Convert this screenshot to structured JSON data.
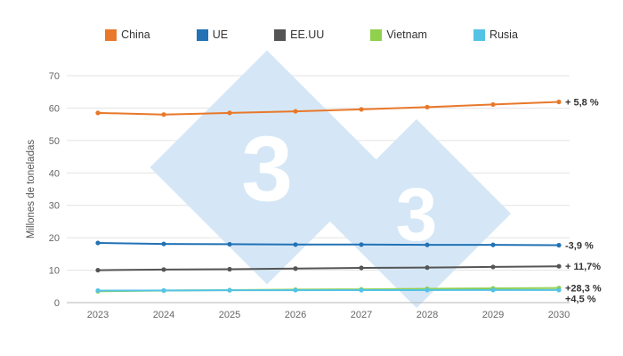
{
  "chart_data": {
    "type": "line",
    "title": "",
    "xlabel": "",
    "ylabel": "Millones de toneladas",
    "ylim": [
      0,
      70
    ],
    "yticks": [
      0,
      10,
      20,
      30,
      40,
      50,
      60,
      70
    ],
    "grid": true,
    "legend_position": "top",
    "x": [
      "2023",
      "2024",
      "2025",
      "2026",
      "2027",
      "2028",
      "2029",
      "2030"
    ],
    "series": [
      {
        "name": "China",
        "color": "#E8782A",
        "values": [
          58.5,
          58.0,
          58.5,
          59.0,
          59.6,
          60.3,
          61.1,
          61.9
        ],
        "end_label": "+ 5,8 %"
      },
      {
        "name": "UE",
        "color": "#2272B5",
        "values": [
          18.4,
          18.1,
          18.0,
          17.9,
          17.9,
          17.8,
          17.8,
          17.7
        ],
        "end_label": "-3,9 %"
      },
      {
        "name": "EE.UU",
        "color": "#555555",
        "values": [
          10.0,
          10.2,
          10.3,
          10.5,
          10.7,
          10.8,
          11.0,
          11.2
        ],
        "end_label": "+ 11,7%"
      },
      {
        "name": "Vietnam",
        "color": "#90D04D",
        "values": [
          3.5,
          3.7,
          3.85,
          4.0,
          4.1,
          4.25,
          4.4,
          4.5
        ],
        "end_label": "+28,3 %"
      },
      {
        "name": "Rusia",
        "color": "#55C3E6",
        "values": [
          3.7,
          3.75,
          3.8,
          3.82,
          3.85,
          3.86,
          3.87,
          3.87
        ],
        "end_label": "+4,5 %"
      }
    ]
  },
  "watermark": {
    "text": "3",
    "diamond_color": "#D5E7F6",
    "text_color": "#FFFFFF"
  },
  "colors": {
    "grid": "#E3E3E3",
    "axis": "#B5B5B5",
    "tick_label": "#666666",
    "end_label": "#333333"
  }
}
